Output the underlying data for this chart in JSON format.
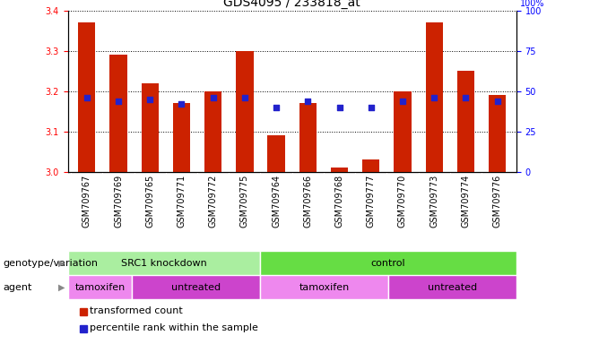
{
  "title": "GDS4095 / 233818_at",
  "samples": [
    "GSM709767",
    "GSM709769",
    "GSM709765",
    "GSM709771",
    "GSM709772",
    "GSM709775",
    "GSM709764",
    "GSM709766",
    "GSM709768",
    "GSM709777",
    "GSM709770",
    "GSM709773",
    "GSM709774",
    "GSM709776"
  ],
  "bar_values": [
    3.37,
    3.29,
    3.22,
    3.17,
    3.2,
    3.3,
    3.09,
    3.17,
    3.01,
    3.03,
    3.2,
    3.37,
    3.25,
    3.19
  ],
  "dot_values": [
    46,
    44,
    45,
    42,
    46,
    46,
    40,
    44,
    40,
    40,
    44,
    46,
    46,
    44
  ],
  "ylim_left": [
    3.0,
    3.4
  ],
  "ylim_right": [
    0,
    100
  ],
  "yticks_left": [
    3.0,
    3.1,
    3.2,
    3.3,
    3.4
  ],
  "yticks_right": [
    0,
    25,
    50,
    75,
    100
  ],
  "bar_color": "#cc2200",
  "dot_color": "#2222cc",
  "genotype_groups": [
    {
      "label": "SRC1 knockdown",
      "start": 0,
      "end": 6,
      "color": "#aaeea0"
    },
    {
      "label": "control",
      "start": 6,
      "end": 14,
      "color": "#66dd44"
    }
  ],
  "agent_groups": [
    {
      "label": "tamoxifen",
      "start": 0,
      "end": 2,
      "color": "#ee88ee"
    },
    {
      "label": "untreated",
      "start": 2,
      "end": 6,
      "color": "#cc44cc"
    },
    {
      "label": "tamoxifen",
      "start": 6,
      "end": 10,
      "color": "#ee88ee"
    },
    {
      "label": "untreated",
      "start": 10,
      "end": 14,
      "color": "#cc44cc"
    }
  ],
  "legend_items": [
    {
      "label": "transformed count",
      "color": "#cc2200"
    },
    {
      "label": "percentile rank within the sample",
      "color": "#2222cc"
    }
  ],
  "genotype_label": "genotype/variation",
  "agent_label": "agent",
  "title_fontsize": 10,
  "tick_fontsize": 7,
  "label_fontsize": 8,
  "row_fontsize": 8
}
